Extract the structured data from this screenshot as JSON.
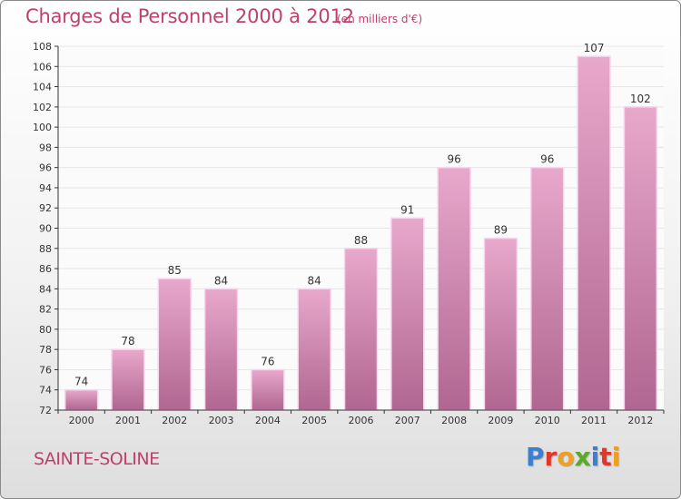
{
  "header": {
    "title": "Charges de Personnel 2000 à 2012",
    "subtitle": "(en milliers d'€)"
  },
  "footer": {
    "commune": "SAINTE-SOLINE",
    "logo": {
      "text": "Proxiti",
      "letters": [
        {
          "char": "P",
          "color": "#3a7fd0"
        },
        {
          "char": "r",
          "color": "#e0362c"
        },
        {
          "char": "o",
          "color": "#f0a020"
        },
        {
          "char": "x",
          "color": "#5aaa2a"
        },
        {
          "char": "i",
          "color": "#3a7fd0"
        },
        {
          "char": "t",
          "color": "#e0362c"
        },
        {
          "char": "i",
          "color": "#f0a020"
        }
      ]
    }
  },
  "chart_data": {
    "type": "bar",
    "title": "Charges de Personnel 2000 à 2012",
    "subtitle": "(en milliers d'€)",
    "categories": [
      "2000",
      "2001",
      "2002",
      "2003",
      "2004",
      "2005",
      "2006",
      "2007",
      "2008",
      "2009",
      "2010",
      "2011",
      "2012"
    ],
    "values": [
      74,
      78,
      85,
      84,
      76,
      84,
      88,
      91,
      96,
      89,
      96,
      107,
      102
    ],
    "ylim": [
      72,
      108
    ],
    "yticks": [
      72,
      74,
      76,
      78,
      80,
      82,
      84,
      86,
      88,
      90,
      92,
      94,
      96,
      98,
      100,
      102,
      104,
      106,
      108
    ],
    "grid": true,
    "legend": "none",
    "colors": {
      "bar_top": "#e8a8cc",
      "bar_bottom": "#b06690",
      "bar_edge": "#f6d6ea",
      "grid": "#e6e6e6",
      "plot_bg": "#fbfbfb",
      "axis": "#333333"
    }
  }
}
